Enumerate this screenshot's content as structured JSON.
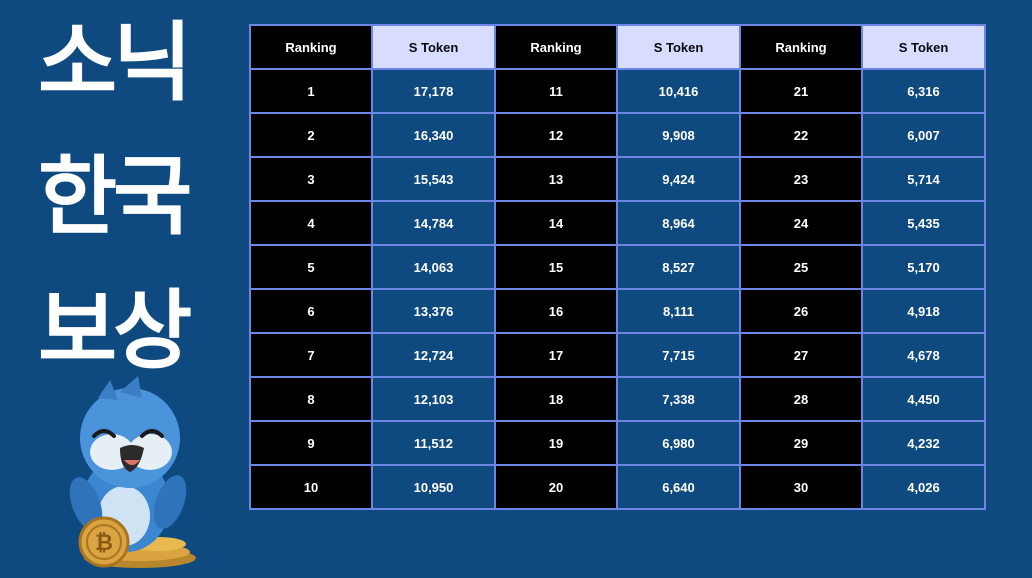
{
  "title": {
    "lines": [
      "소닉",
      "한국",
      "보상"
    ]
  },
  "mascot": {
    "icon": "blue-bird-mascot-with-bitcoin-icon"
  },
  "table": {
    "headers": [
      "Ranking",
      "S Token",
      "Ranking",
      "S Token",
      "Ranking",
      "S Token"
    ],
    "rows": [
      [
        "1",
        "17,178",
        "11",
        "10,416",
        "21",
        "6,316"
      ],
      [
        "2",
        "16,340",
        "12",
        "9,908",
        "22",
        "6,007"
      ],
      [
        "3",
        "15,543",
        "13",
        "9,424",
        "23",
        "5,714"
      ],
      [
        "4",
        "14,784",
        "14",
        "8,964",
        "24",
        "5,435"
      ],
      [
        "5",
        "14,063",
        "15",
        "8,527",
        "25",
        "5,170"
      ],
      [
        "6",
        "13,376",
        "16",
        "8,111",
        "26",
        "4,918"
      ],
      [
        "7",
        "12,724",
        "17",
        "7,715",
        "27",
        "4,678"
      ],
      [
        "8",
        "12,103",
        "18",
        "7,338",
        "28",
        "4,450"
      ],
      [
        "9",
        "11,512",
        "19",
        "6,980",
        "29",
        "4,232"
      ],
      [
        "10",
        "10,950",
        "20",
        "6,640",
        "30",
        "4,026"
      ]
    ]
  },
  "colors": {
    "background": "#0e4a80",
    "rank_cell": "#000000",
    "token_header": "#d8dcff",
    "grid": "#6c86e6"
  }
}
